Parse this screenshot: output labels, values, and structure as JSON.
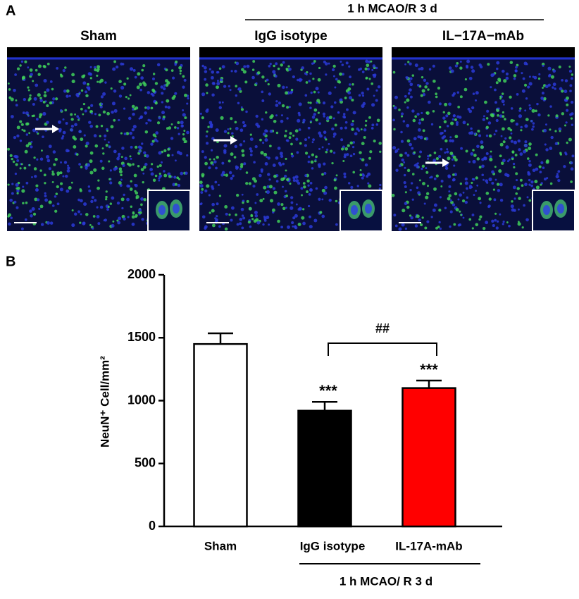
{
  "panel_a": {
    "label": "A",
    "group_label": "1 h MCAO/R 3 d",
    "images": [
      "Sham",
      "IgG isotype",
      "IL−17A−mAb"
    ]
  },
  "chart_data": {
    "type": "bar",
    "panel_label": "B",
    "y_label": "NeuN⁺ Cell/mm²",
    "categories": [
      "Sham",
      "IgG isotype",
      "IL-17A-mAb"
    ],
    "values": [
      1450,
      920,
      1100
    ],
    "errors": [
      85,
      70,
      60
    ],
    "colors": [
      "#ffffff",
      "#000000",
      "#ff0000"
    ],
    "significance": [
      null,
      "***",
      "***"
    ],
    "comparison_label": "##",
    "group_label": "1 h MCAO/ R 3 d",
    "ylim": [
      0,
      2000
    ],
    "yticks": [
      0,
      500,
      1000,
      1500,
      2000
    ]
  }
}
